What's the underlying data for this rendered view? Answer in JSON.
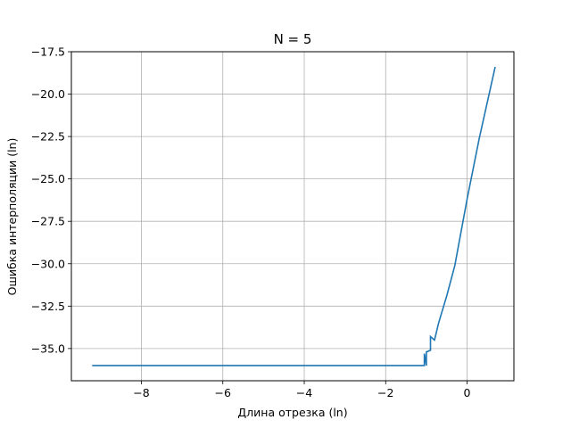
{
  "chart_data": {
    "type": "line",
    "title": "N = 5",
    "xlabel": "Длина отрезка (ln)",
    "ylabel": "Ошибка интерполяции (ln)",
    "xlim": [
      -9.72,
      1.15
    ],
    "ylim": [
      -36.9,
      -17.5
    ],
    "xticks": [
      -8,
      -6,
      -4,
      -2,
      0
    ],
    "xtick_labels": [
      "−8",
      "−6",
      "−4",
      "−2",
      "0"
    ],
    "yticks": [
      -35.0,
      -32.5,
      -30.0,
      -27.5,
      -25.0,
      -22.5,
      -20.0,
      -17.5
    ],
    "ytick_labels": [
      "−35.0",
      "−32.5",
      "−30.0",
      "−27.5",
      "−25.0",
      "−22.5",
      "−20.0",
      "−17.5"
    ],
    "grid": true,
    "series": [
      {
        "color": "#1f77b4",
        "x": [
          -9.21,
          -2.0,
          -1.05,
          -1.05,
          -1.0,
          -1.0,
          -0.9,
          -0.9,
          -0.8,
          -0.7,
          -0.5,
          -0.3,
          0.0,
          0.3,
          0.69
        ],
        "y": [
          -36.0,
          -36.0,
          -36.0,
          -35.3,
          -36.0,
          -35.2,
          -35.1,
          -34.3,
          -34.5,
          -33.5,
          -31.9,
          -30.1,
          -26.2,
          -22.6,
          -18.4
        ]
      }
    ]
  }
}
